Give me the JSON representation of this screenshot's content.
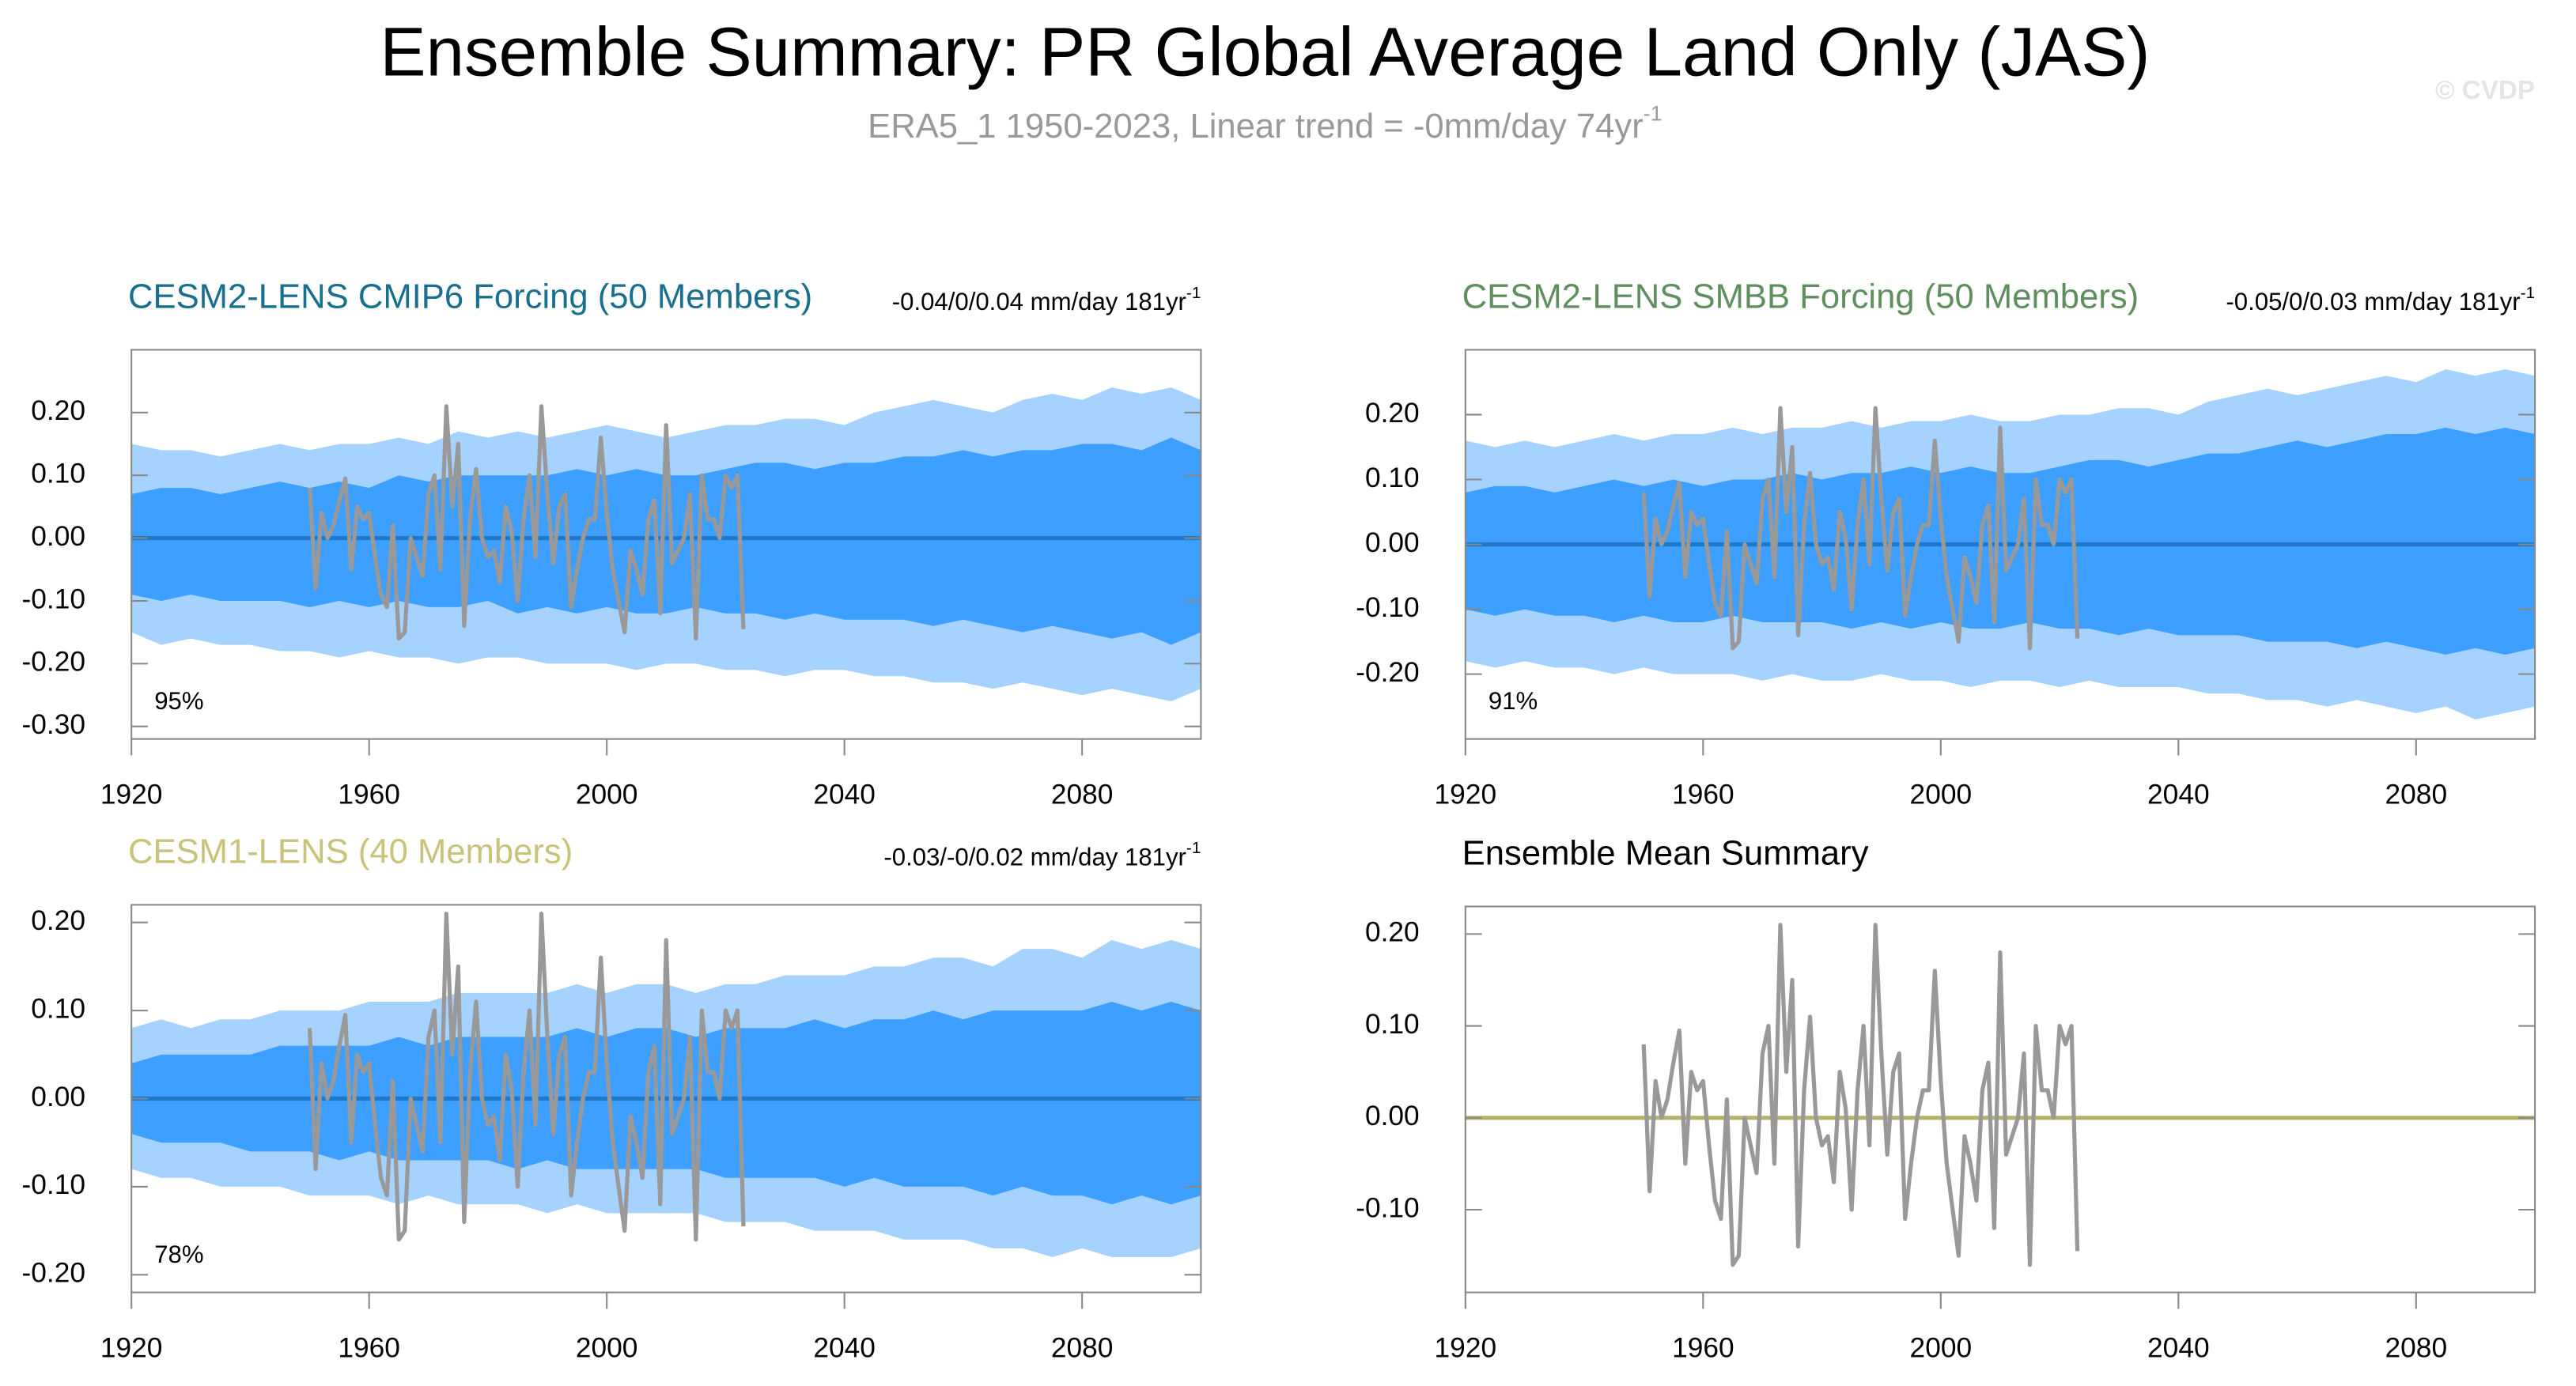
{
  "title": "Ensemble Summary: PR Global Average Land Only (JAS)",
  "subtitle": {
    "text": "ERA5_1 1950-2023, Linear trend = -0mm/day 74yr",
    "superscript": "-1"
  },
  "watermark": "© CVDP",
  "observations": {
    "color": "#999999",
    "x": [
      1950,
      1951,
      1952,
      1953,
      1954,
      1955,
      1956,
      1957,
      1958,
      1959,
      1960,
      1961,
      1962,
      1963,
      1964,
      1965,
      1966,
      1967,
      1968,
      1969,
      1970,
      1971,
      1972,
      1973,
      1974,
      1975,
      1976,
      1977,
      1978,
      1979,
      1980,
      1981,
      1982,
      1983,
      1984,
      1985,
      1986,
      1987,
      1988,
      1989,
      1990,
      1991,
      1992,
      1993,
      1994,
      1995,
      1996,
      1997,
      1998,
      1999,
      2000,
      2001,
      2002,
      2003,
      2004,
      2005,
      2006,
      2007,
      2008,
      2009,
      2010,
      2011,
      2012,
      2013,
      2014,
      2015,
      2016,
      2017,
      2018,
      2019,
      2020,
      2021,
      2022,
      2023
    ],
    "values": [
      0.08,
      -0.08,
      0.04,
      0.0,
      0.02,
      0.06,
      0.095,
      -0.05,
      0.05,
      0.03,
      0.04,
      -0.03,
      -0.09,
      -0.11,
      0.02,
      -0.16,
      -0.15,
      0.0,
      -0.03,
      -0.06,
      0.07,
      0.1,
      -0.05,
      0.21,
      0.05,
      0.15,
      -0.14,
      0.03,
      0.11,
      0.0,
      -0.03,
      -0.02,
      -0.07,
      0.05,
      0.01,
      -0.1,
      0.03,
      0.1,
      -0.03,
      0.21,
      0.07,
      -0.04,
      0.05,
      0.07,
      -0.11,
      -0.05,
      0.0,
      0.03,
      0.03,
      0.16,
      0.04,
      -0.05,
      -0.1,
      -0.15,
      -0.02,
      -0.05,
      -0.09,
      0.03,
      0.06,
      -0.12,
      0.18,
      -0.04,
      -0.02,
      0.0,
      0.07,
      -0.16,
      0.1,
      0.03,
      0.03,
      0.0,
      0.1,
      0.08,
      0.1,
      -0.145
    ]
  },
  "chart_data": [
    {
      "type": "band",
      "title": "CESM2-LENS CMIP6 Forcing (50 Members)",
      "title_color": "#1a6f8f",
      "trend": {
        "text": "-0.04/0/0.04 mm/day 181yr",
        "superscript": "-1"
      },
      "percent": "95%",
      "xlim": [
        1920,
        2100
      ],
      "xticks": [
        1920,
        1960,
        2000,
        2040,
        2080
      ],
      "ylim": [
        -0.32,
        0.3
      ],
      "yticks": [
        {
          "value": -0.3,
          "label": "-0.30"
        },
        {
          "value": -0.2,
          "label": "-0.20"
        },
        {
          "value": -0.1,
          "label": "-0.10"
        },
        {
          "value": 0,
          "label": "0.00"
        },
        {
          "value": 0.1,
          "label": "0.10"
        },
        {
          "value": 0.2,
          "label": "0.20"
        }
      ],
      "x": [
        1920,
        1925,
        1930,
        1935,
        1940,
        1945,
        1950,
        1955,
        1960,
        1965,
        1970,
        1975,
        1980,
        1985,
        1990,
        1995,
        2000,
        2005,
        2010,
        2015,
        2020,
        2025,
        2030,
        2035,
        2040,
        2045,
        2050,
        2055,
        2060,
        2065,
        2070,
        2075,
        2080,
        2085,
        2090,
        2095,
        2100
      ],
      "bands": [
        {
          "color": "#a6d2ff",
          "upper": [
            0.15,
            0.14,
            0.14,
            0.13,
            0.14,
            0.15,
            0.14,
            0.15,
            0.15,
            0.16,
            0.15,
            0.17,
            0.16,
            0.17,
            0.16,
            0.17,
            0.18,
            0.17,
            0.16,
            0.17,
            0.18,
            0.18,
            0.19,
            0.19,
            0.18,
            0.2,
            0.21,
            0.22,
            0.21,
            0.2,
            0.22,
            0.23,
            0.22,
            0.24,
            0.23,
            0.24,
            0.22
          ],
          "lower": [
            -0.15,
            -0.17,
            -0.16,
            -0.17,
            -0.17,
            -0.18,
            -0.18,
            -0.19,
            -0.18,
            -0.19,
            -0.19,
            -0.2,
            -0.19,
            -0.19,
            -0.2,
            -0.2,
            -0.2,
            -0.21,
            -0.2,
            -0.2,
            -0.21,
            -0.21,
            -0.22,
            -0.21,
            -0.21,
            -0.22,
            -0.22,
            -0.23,
            -0.23,
            -0.24,
            -0.23,
            -0.24,
            -0.25,
            -0.24,
            -0.25,
            -0.26,
            -0.24
          ]
        },
        {
          "color": "#3d9fff",
          "upper": [
            0.07,
            0.08,
            0.08,
            0.07,
            0.08,
            0.09,
            0.08,
            0.09,
            0.08,
            0.1,
            0.09,
            0.1,
            0.1,
            0.1,
            0.1,
            0.11,
            0.1,
            0.11,
            0.1,
            0.1,
            0.11,
            0.12,
            0.12,
            0.11,
            0.12,
            0.12,
            0.13,
            0.13,
            0.14,
            0.13,
            0.14,
            0.14,
            0.15,
            0.15,
            0.14,
            0.16,
            0.14
          ],
          "lower": [
            -0.09,
            -0.1,
            -0.09,
            -0.1,
            -0.1,
            -0.1,
            -0.11,
            -0.1,
            -0.11,
            -0.1,
            -0.11,
            -0.11,
            -0.1,
            -0.12,
            -0.11,
            -0.12,
            -0.11,
            -0.12,
            -0.12,
            -0.11,
            -0.12,
            -0.12,
            -0.13,
            -0.12,
            -0.13,
            -0.13,
            -0.13,
            -0.14,
            -0.13,
            -0.14,
            -0.15,
            -0.14,
            -0.15,
            -0.16,
            -0.15,
            -0.17,
            -0.15
          ]
        }
      ],
      "mean": {
        "color": "#1f78c8",
        "values": [
          0,
          0,
          0,
          0,
          0,
          0,
          0,
          0,
          0,
          0,
          0,
          0,
          0,
          0,
          0,
          0,
          0,
          0,
          0,
          0,
          0,
          0,
          0,
          0,
          0,
          0,
          0,
          0,
          0,
          0,
          0,
          0,
          0,
          0,
          0,
          0,
          0
        ]
      }
    },
    {
      "type": "band",
      "title": "CESM2-LENS SMBB Forcing (50 Members)",
      "title_color": "#5f8f5f",
      "trend": {
        "text": "-0.05/0/0.03 mm/day 181yr",
        "superscript": "-1"
      },
      "percent": "91%",
      "xlim": [
        1920,
        2100
      ],
      "xticks": [
        1920,
        1960,
        2000,
        2040,
        2080
      ],
      "ylim": [
        -0.3,
        0.3
      ],
      "yticks": [
        {
          "value": -0.2,
          "label": "-0.20"
        },
        {
          "value": -0.1,
          "label": "-0.10"
        },
        {
          "value": 0,
          "label": "0.00"
        },
        {
          "value": 0.1,
          "label": "0.10"
        },
        {
          "value": 0.2,
          "label": "0.20"
        }
      ],
      "x": [
        1920,
        1925,
        1930,
        1935,
        1940,
        1945,
        1950,
        1955,
        1960,
        1965,
        1970,
        1975,
        1980,
        1985,
        1990,
        1995,
        2000,
        2005,
        2010,
        2015,
        2020,
        2025,
        2030,
        2035,
        2040,
        2045,
        2050,
        2055,
        2060,
        2065,
        2070,
        2075,
        2080,
        2085,
        2090,
        2095,
        2100
      ],
      "bands": [
        {
          "color": "#a6d2ff",
          "upper": [
            0.16,
            0.15,
            0.16,
            0.15,
            0.16,
            0.17,
            0.16,
            0.17,
            0.17,
            0.18,
            0.17,
            0.18,
            0.18,
            0.19,
            0.18,
            0.19,
            0.19,
            0.2,
            0.19,
            0.19,
            0.2,
            0.2,
            0.21,
            0.21,
            0.2,
            0.22,
            0.23,
            0.24,
            0.23,
            0.24,
            0.25,
            0.26,
            0.25,
            0.27,
            0.26,
            0.27,
            0.26
          ],
          "lower": [
            -0.18,
            -0.19,
            -0.18,
            -0.19,
            -0.19,
            -0.2,
            -0.19,
            -0.2,
            -0.2,
            -0.2,
            -0.21,
            -0.2,
            -0.21,
            -0.21,
            -0.2,
            -0.21,
            -0.21,
            -0.22,
            -0.21,
            -0.21,
            -0.22,
            -0.21,
            -0.22,
            -0.22,
            -0.22,
            -0.23,
            -0.23,
            -0.24,
            -0.24,
            -0.25,
            -0.24,
            -0.25,
            -0.26,
            -0.25,
            -0.27,
            -0.26,
            -0.25
          ]
        },
        {
          "color": "#3d9fff",
          "upper": [
            0.08,
            0.09,
            0.09,
            0.08,
            0.09,
            0.1,
            0.09,
            0.1,
            0.09,
            0.1,
            0.1,
            0.11,
            0.1,
            0.11,
            0.11,
            0.12,
            0.11,
            0.12,
            0.11,
            0.11,
            0.12,
            0.13,
            0.13,
            0.12,
            0.13,
            0.14,
            0.14,
            0.15,
            0.16,
            0.15,
            0.16,
            0.17,
            0.17,
            0.18,
            0.17,
            0.18,
            0.17
          ],
          "lower": [
            -0.1,
            -0.11,
            -0.1,
            -0.11,
            -0.11,
            -0.12,
            -0.11,
            -0.12,
            -0.12,
            -0.11,
            -0.12,
            -0.12,
            -0.12,
            -0.13,
            -0.12,
            -0.13,
            -0.12,
            -0.13,
            -0.13,
            -0.12,
            -0.13,
            -0.13,
            -0.14,
            -0.13,
            -0.14,
            -0.14,
            -0.14,
            -0.15,
            -0.15,
            -0.15,
            -0.16,
            -0.15,
            -0.16,
            -0.17,
            -0.16,
            -0.17,
            -0.16
          ]
        }
      ],
      "mean": {
        "color": "#1f78c8",
        "values": [
          0,
          0,
          0,
          0,
          0,
          0,
          0,
          0,
          0,
          0,
          0,
          0,
          0,
          0,
          0,
          0,
          0,
          0,
          0,
          0,
          0,
          0,
          0,
          0,
          0,
          0,
          0,
          0,
          0,
          0,
          0,
          0,
          0,
          0,
          0,
          0,
          0
        ]
      }
    },
    {
      "type": "band",
      "title": "CESM1-LENS (40 Members)",
      "title_color": "#c8c27a",
      "trend": {
        "text": "-0.03/-0/0.02 mm/day 181yr",
        "superscript": "-1"
      },
      "percent": "78%",
      "xlim": [
        1920,
        2100
      ],
      "xticks": [
        1920,
        1960,
        2000,
        2040,
        2080
      ],
      "ylim": [
        -0.22,
        0.22
      ],
      "yticks": [
        {
          "value": -0.2,
          "label": "-0.20"
        },
        {
          "value": -0.1,
          "label": "-0.10"
        },
        {
          "value": 0,
          "label": "0.00"
        },
        {
          "value": 0.1,
          "label": "0.10"
        },
        {
          "value": 0.2,
          "label": "0.20"
        }
      ],
      "x": [
        1920,
        1925,
        1930,
        1935,
        1940,
        1945,
        1950,
        1955,
        1960,
        1965,
        1970,
        1975,
        1980,
        1985,
        1990,
        1995,
        2000,
        2005,
        2010,
        2015,
        2020,
        2025,
        2030,
        2035,
        2040,
        2045,
        2050,
        2055,
        2060,
        2065,
        2070,
        2075,
        2080,
        2085,
        2090,
        2095,
        2100
      ],
      "bands": [
        {
          "color": "#a6d2ff",
          "upper": [
            0.08,
            0.09,
            0.08,
            0.09,
            0.09,
            0.1,
            0.1,
            0.1,
            0.11,
            0.11,
            0.11,
            0.12,
            0.12,
            0.12,
            0.12,
            0.13,
            0.12,
            0.13,
            0.13,
            0.12,
            0.13,
            0.13,
            0.14,
            0.14,
            0.14,
            0.15,
            0.15,
            0.16,
            0.16,
            0.15,
            0.17,
            0.17,
            0.16,
            0.18,
            0.17,
            0.18,
            0.17
          ],
          "lower": [
            -0.08,
            -0.09,
            -0.09,
            -0.1,
            -0.1,
            -0.1,
            -0.11,
            -0.11,
            -0.11,
            -0.12,
            -0.11,
            -0.12,
            -0.12,
            -0.12,
            -0.13,
            -0.12,
            -0.13,
            -0.13,
            -0.13,
            -0.13,
            -0.14,
            -0.14,
            -0.14,
            -0.15,
            -0.15,
            -0.15,
            -0.16,
            -0.16,
            -0.16,
            -0.17,
            -0.17,
            -0.18,
            -0.17,
            -0.18,
            -0.18,
            -0.18,
            -0.17
          ]
        },
        {
          "color": "#3d9fff",
          "upper": [
            0.04,
            0.05,
            0.05,
            0.05,
            0.05,
            0.06,
            0.06,
            0.06,
            0.06,
            0.07,
            0.06,
            0.07,
            0.07,
            0.07,
            0.07,
            0.08,
            0.07,
            0.08,
            0.08,
            0.07,
            0.08,
            0.08,
            0.08,
            0.09,
            0.08,
            0.09,
            0.09,
            0.1,
            0.09,
            0.1,
            0.1,
            0.1,
            0.1,
            0.11,
            0.1,
            0.11,
            0.1
          ],
          "lower": [
            -0.04,
            -0.05,
            -0.05,
            -0.05,
            -0.06,
            -0.06,
            -0.06,
            -0.07,
            -0.06,
            -0.07,
            -0.07,
            -0.07,
            -0.07,
            -0.08,
            -0.07,
            -0.08,
            -0.08,
            -0.08,
            -0.08,
            -0.08,
            -0.09,
            -0.09,
            -0.09,
            -0.09,
            -0.1,
            -0.09,
            -0.1,
            -0.1,
            -0.1,
            -0.11,
            -0.1,
            -0.11,
            -0.11,
            -0.12,
            -0.11,
            -0.12,
            -0.11
          ]
        }
      ],
      "mean": {
        "color": "#1f78c8",
        "values": [
          0,
          0,
          0,
          0,
          0,
          0,
          0,
          0,
          0,
          0,
          0,
          0,
          0,
          0,
          0,
          0,
          0,
          0,
          0,
          0,
          0,
          0,
          0,
          0,
          0,
          0,
          0,
          0,
          0,
          0,
          0,
          0,
          0,
          0,
          0,
          0,
          0
        ]
      }
    },
    {
      "type": "summary",
      "title": "Ensemble Mean Summary",
      "title_color": "#000000",
      "xlim": [
        1920,
        2100
      ],
      "xticks": [
        1920,
        1960,
        2000,
        2040,
        2080
      ],
      "ylim": [
        -0.19,
        0.23
      ],
      "yticks": [
        {
          "value": -0.1,
          "label": "-0.10"
        },
        {
          "value": 0,
          "label": "0.00"
        },
        {
          "value": 0.1,
          "label": "0.10"
        },
        {
          "value": 0.2,
          "label": "0.20"
        }
      ],
      "x": [
        1920,
        2100
      ],
      "mean": {
        "color": "#b5b06a",
        "values": [
          0,
          0
        ]
      }
    }
  ]
}
